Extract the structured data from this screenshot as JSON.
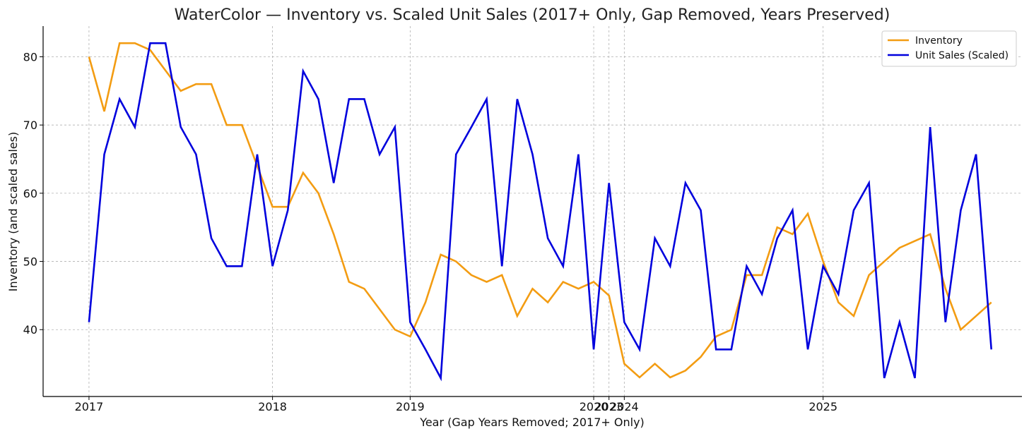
{
  "chart_data": {
    "type": "line",
    "title": "WaterColor — Inventory vs. Scaled Unit Sales (2017+ Only, Gap Removed, Years Preserved)",
    "xlabel": "Year (Gap Years Removed; 2017+ Only)",
    "ylabel": "Inventory (and scaled sales)",
    "x_ticks": [
      {
        "index": 0,
        "label": "2017"
      },
      {
        "index": 12,
        "label": "2018"
      },
      {
        "index": 21,
        "label": "2019"
      },
      {
        "index": 33,
        "label": "2020"
      },
      {
        "index": 34,
        "label": "2023"
      },
      {
        "index": 35,
        "label": "2024"
      },
      {
        "index": 48,
        "label": "2025"
      }
    ],
    "xlim": [
      -3,
      61
    ],
    "ylim": [
      30.2,
      84.5
    ],
    "yticks": [
      40,
      50,
      60,
      70,
      80
    ],
    "grid": true,
    "legend_position": "top-right",
    "series": [
      {
        "name": "Inventory",
        "color": "#F39C12",
        "values": [
          80,
          72,
          82,
          82,
          81,
          78,
          75,
          76,
          76,
          70,
          70,
          64,
          58,
          58,
          63,
          60,
          54,
          47,
          46,
          43,
          40,
          39,
          44,
          51,
          50,
          48,
          47,
          48,
          42,
          46,
          44,
          47,
          46,
          47,
          45,
          35,
          33,
          35,
          33,
          34,
          36,
          39,
          40,
          48,
          48,
          55,
          54,
          57,
          50,
          44,
          42,
          48,
          50,
          52,
          53,
          54,
          46,
          40,
          42,
          44
        ]
      },
      {
        "name": "Unit Sales (Scaled)",
        "color": "#0000DD",
        "values": [
          41.1,
          65.7,
          73.8,
          69.7,
          82,
          82,
          69.7,
          65.7,
          53.4,
          49.3,
          49.3,
          65.7,
          49.3,
          57.5,
          77.9,
          73.8,
          61.5,
          73.8,
          73.8,
          65.7,
          69.7,
          41.1,
          37.1,
          32.9,
          65.7,
          69.7,
          73.8,
          49.3,
          73.8,
          65.7,
          53.4,
          49.3,
          65.7,
          37.1,
          61.5,
          41.1,
          37.1,
          53.4,
          49.3,
          61.5,
          57.5,
          37.1,
          37.1,
          49.3,
          45.2,
          53.4,
          57.5,
          37.1,
          49.3,
          45.2,
          57.5,
          61.5,
          32.9,
          41.1,
          32.9,
          69.7,
          41.1,
          57.5,
          65.7,
          37.1
        ]
      }
    ]
  }
}
